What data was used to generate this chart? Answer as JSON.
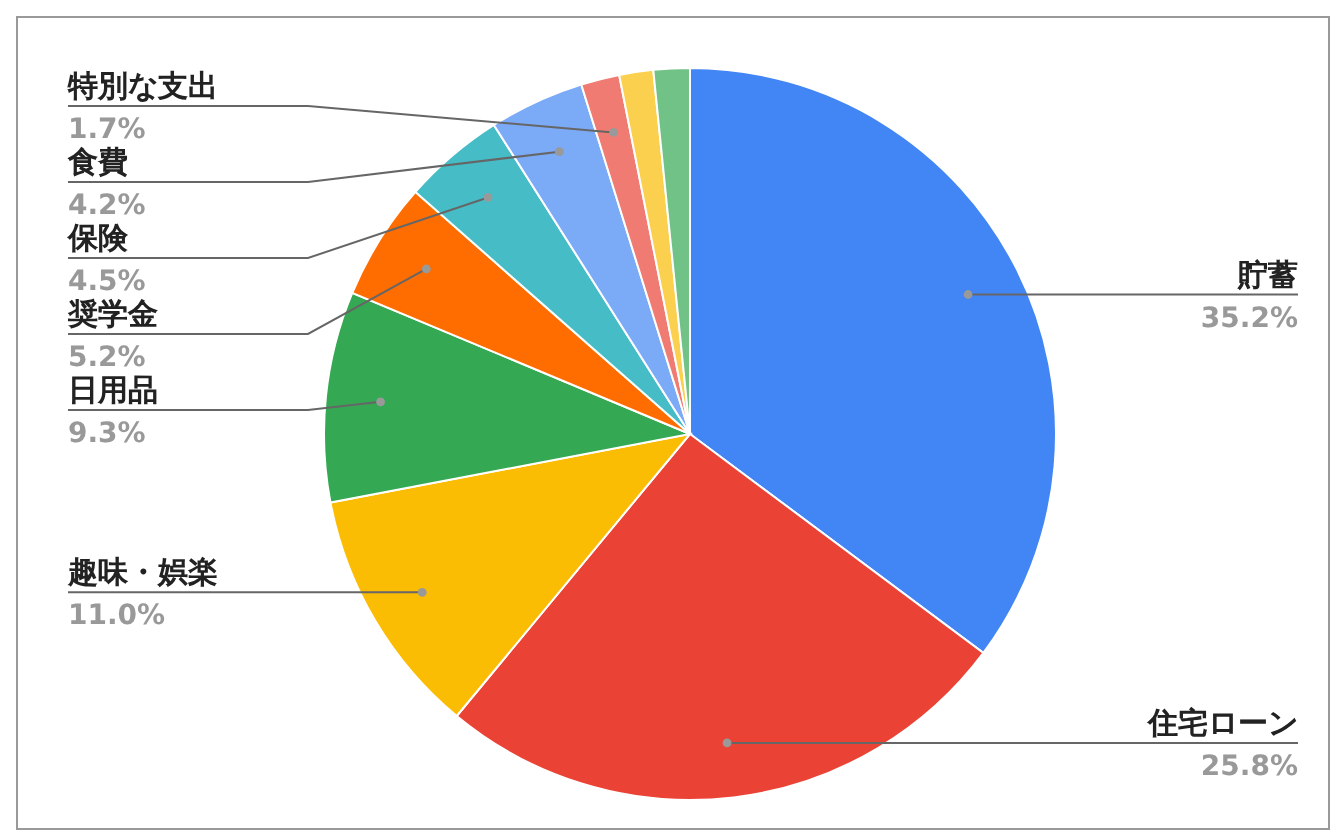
{
  "chart_data": {
    "type": "pie",
    "categories": [
      "貯蓄",
      "住宅ローン",
      "趣味・娯楽",
      "日用品",
      "奨学金",
      "保険",
      "食費",
      "特別な支出",
      null,
      null
    ],
    "values": [
      35.2,
      25.8,
      11.0,
      9.3,
      5.2,
      4.5,
      4.2,
      1.7,
      1.5,
      1.6
    ],
    "colors": [
      "#4285f4",
      "#ea4335",
      "#fbbc04",
      "#34a853",
      "#ff6d01",
      "#46bdc6",
      "#7baaf7",
      "#f07b72",
      "#fcd04f",
      "#71c287"
    ],
    "value_labels": [
      "35.2%",
      "25.8%",
      "11.0%",
      "9.3%",
      "5.2%",
      "4.5%",
      "4.2%",
      "1.7%",
      null,
      null
    ],
    "legend": false
  }
}
